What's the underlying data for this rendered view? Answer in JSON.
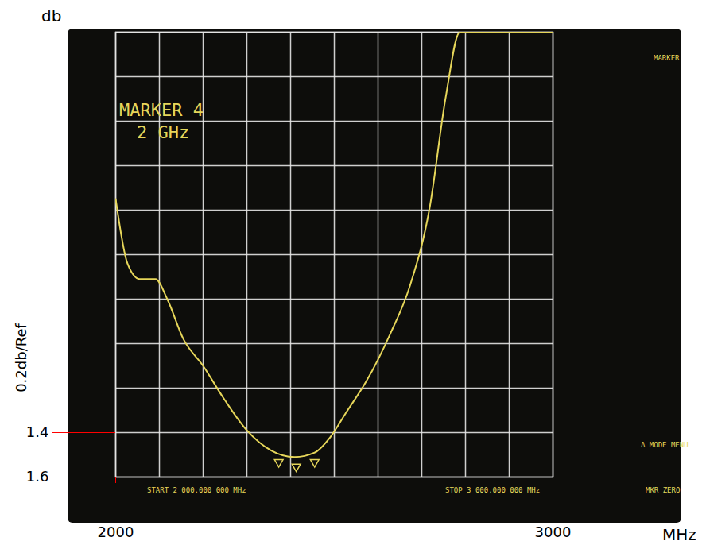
{
  "chart_data": {
    "type": "line",
    "x_label": "MHz",
    "y_label": "db",
    "y_scale_label": "0.2db/Ref",
    "x": [
      2000,
      2027,
      2055,
      2091,
      2118,
      2155,
      2200,
      2245,
      2300,
      2355,
      2409,
      2455,
      2491,
      2527,
      2573,
      2627,
      2673,
      2718,
      2755,
      2787,
      3000
    ],
    "values": [
      0.35,
      0.64,
      0.71,
      0.71,
      0.8,
      0.98,
      1.1,
      1.24,
      1.39,
      1.48,
      1.51,
      1.49,
      1.42,
      1.31,
      1.17,
      0.96,
      0.74,
      0.39,
      -0.11,
      -0.4,
      -0.4
    ],
    "color": "#e6d65a",
    "xlim": [
      2000,
      3000
    ],
    "xticks": [
      2000,
      3000
    ],
    "ylim": [
      1.6,
      -0.4
    ],
    "yticks": [
      1.4,
      1.6
    ],
    "grid": true,
    "markers": {
      "x": [
        2373,
        2413,
        2455
      ],
      "values": [
        1.49,
        1.51,
        1.49
      ]
    },
    "annotations": [
      "MARKER 4",
      "2 GHz",
      "START 2 000.000 000 MHz",
      "STOP 3 000.000 000 MHz",
      "MARKER",
      "Δ MODE MENU",
      "MKR ZERO"
    ]
  }
}
